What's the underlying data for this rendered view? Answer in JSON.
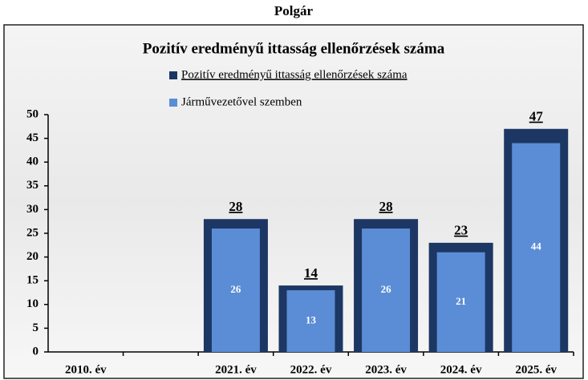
{
  "page_title": "Polgár",
  "chart_data": {
    "type": "bar",
    "title": "Pozitív eredményű ittasság ellenőrzések száma",
    "categories": [
      "2010. év",
      null,
      "2021. év",
      "2022. év",
      "2023. év",
      "2024. év",
      "2025. év"
    ],
    "series": [
      {
        "name": "Pozitív eredményű ittasság ellenőrzések száma",
        "color": "#1c3763",
        "values": [
          null,
          null,
          28,
          14,
          28,
          23,
          47
        ]
      },
      {
        "name": "Járművezetővel szemben",
        "color": "#5b8dd6",
        "values": [
          null,
          null,
          26,
          13,
          26,
          21,
          44
        ]
      }
    ],
    "ylim": [
      0,
      50
    ],
    "yticks": [
      0,
      5,
      10,
      15,
      20,
      25,
      30,
      35,
      40,
      45,
      50
    ]
  }
}
